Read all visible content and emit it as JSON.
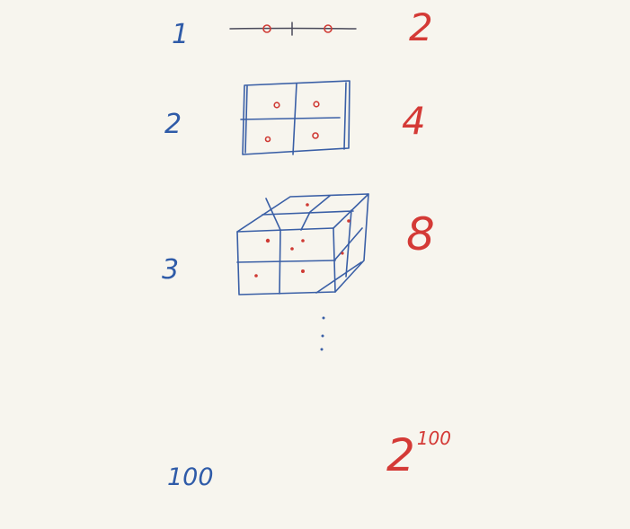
{
  "rows": [
    {
      "dimension": "1",
      "count": "2"
    },
    {
      "dimension": "2",
      "count": "4"
    },
    {
      "dimension": "3",
      "count": "8"
    },
    {
      "dimension": "100",
      "count_base": "2",
      "count_exponent": "100"
    }
  ],
  "colors": {
    "background": "#f7f5ee",
    "dimension_ink": "#2f5ba8",
    "count_ink": "#d43a36",
    "sketch_ink": "#3a5fa6"
  }
}
